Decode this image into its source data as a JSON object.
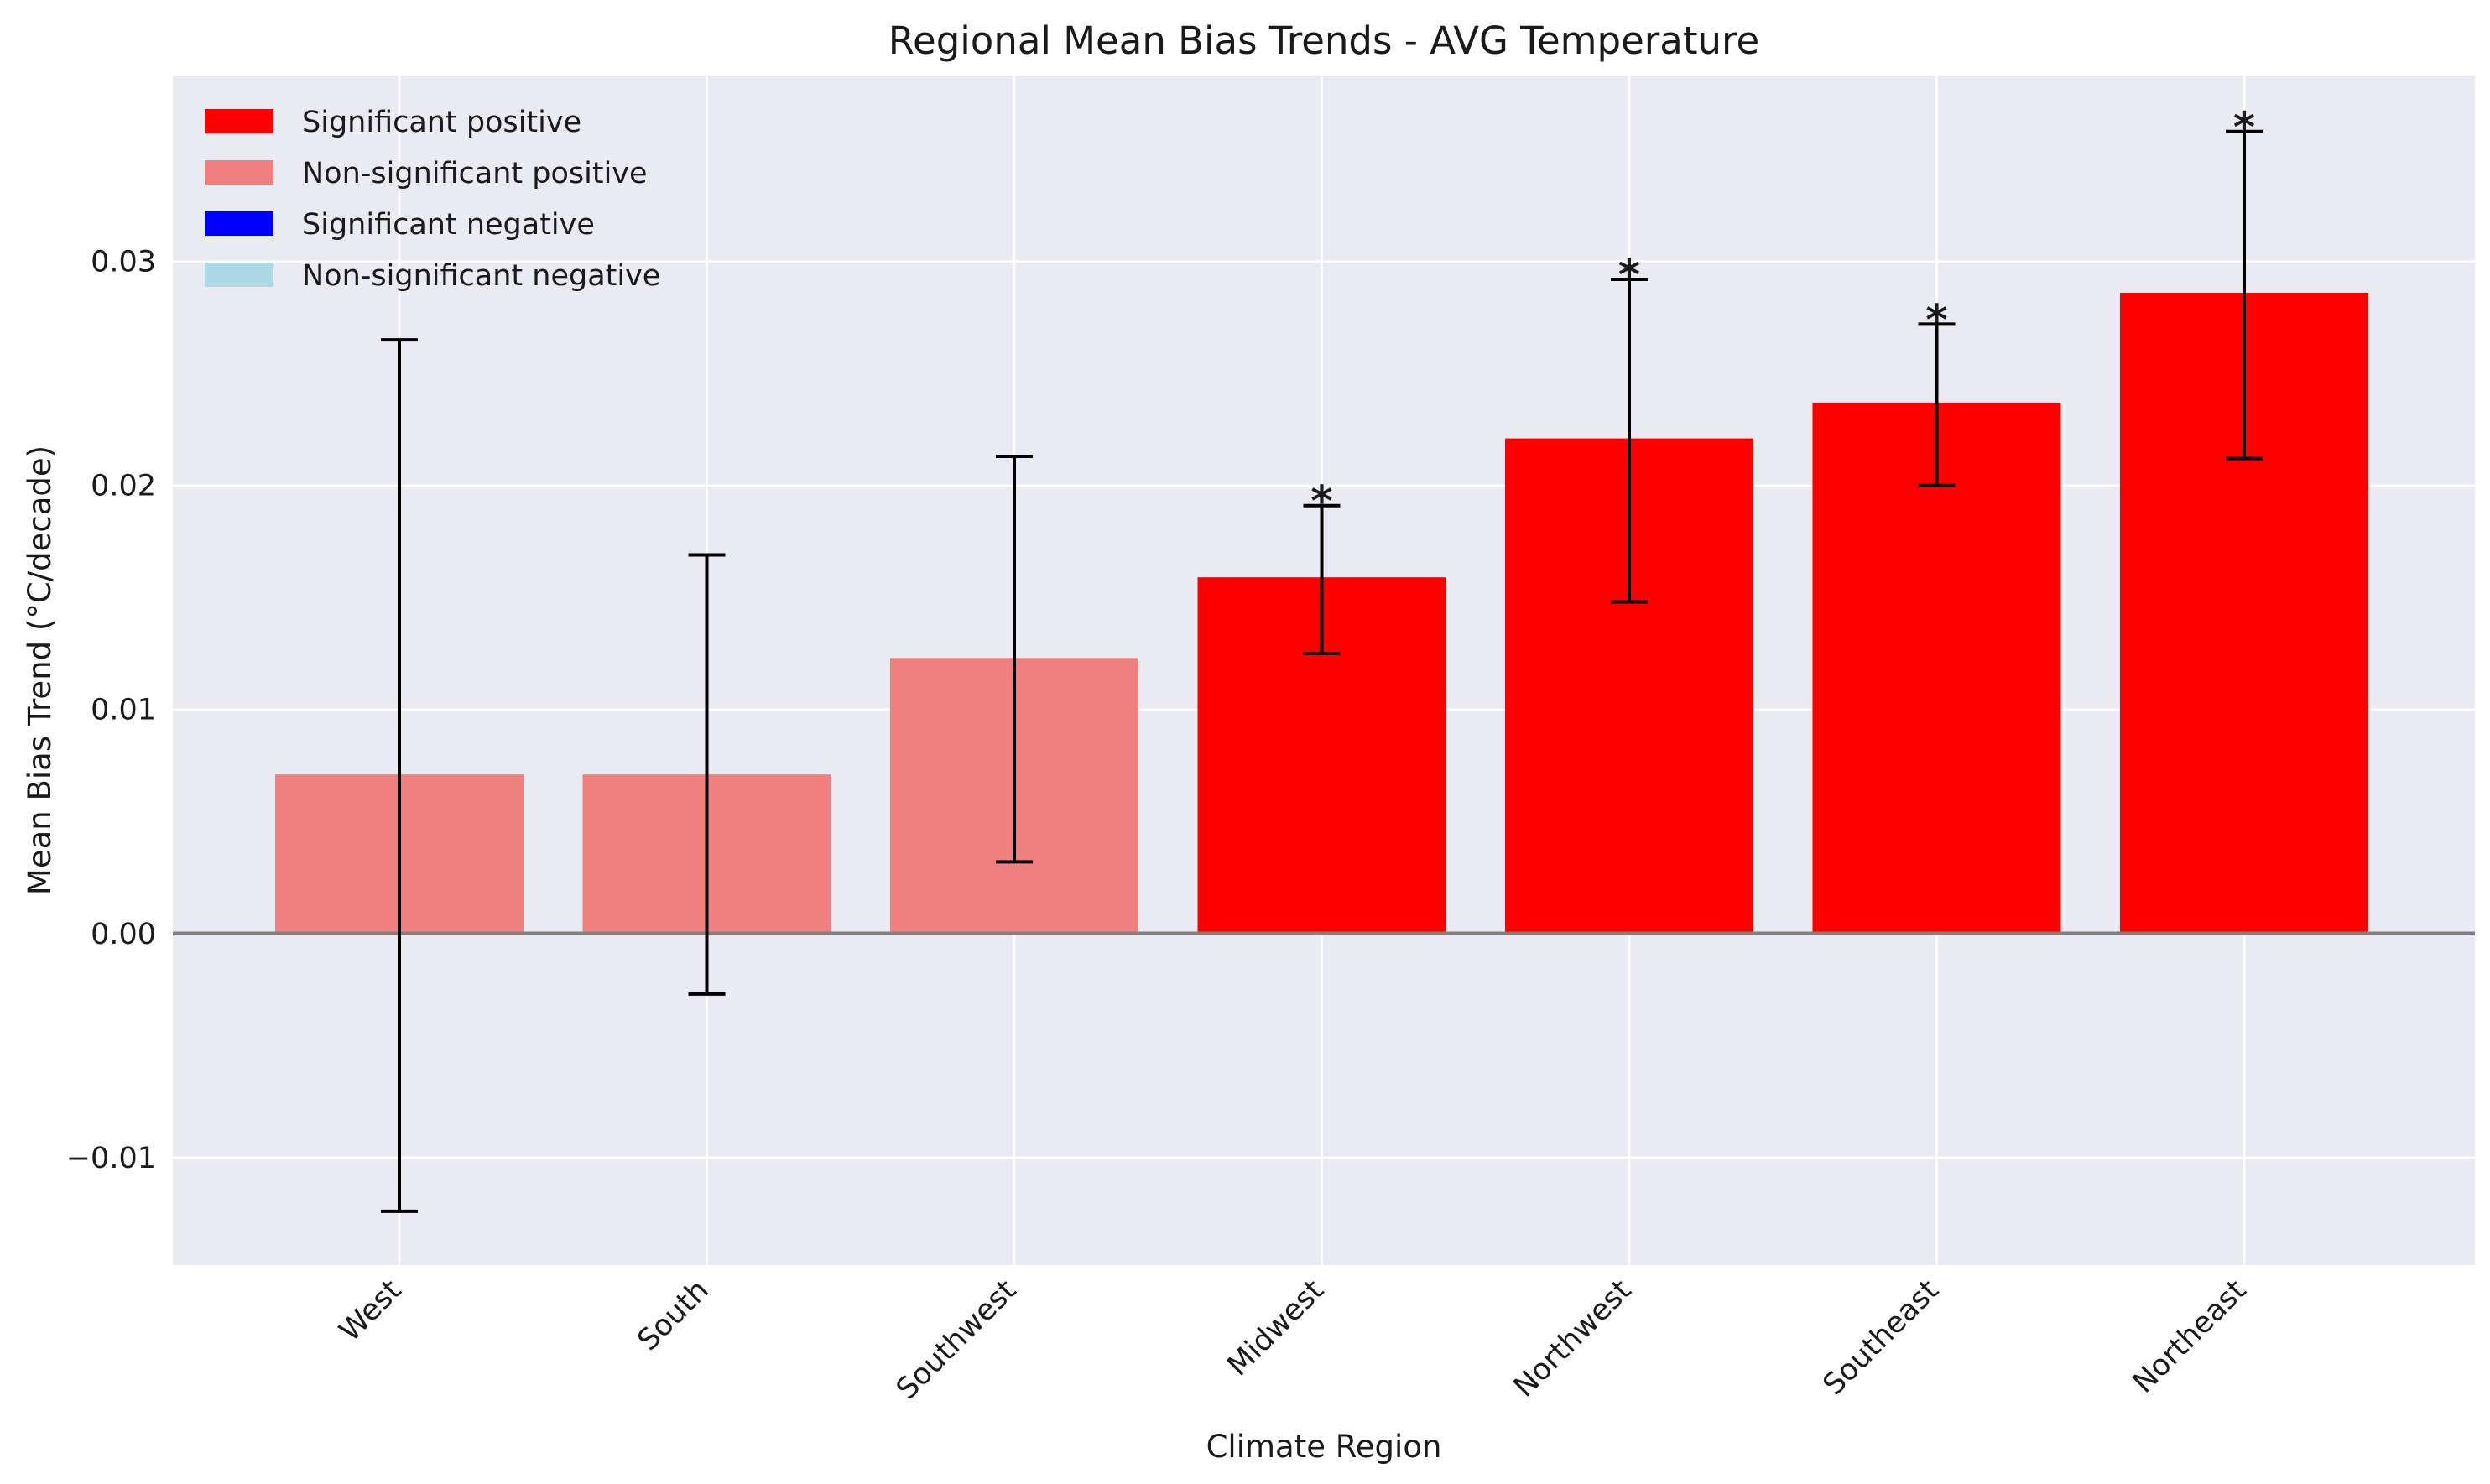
{
  "chart_data": {
    "type": "bar",
    "title": "Regional Mean Bias Trends - AVG Temperature",
    "xlabel": "Climate Region",
    "ylabel": "Mean Bias Trend (°C/decade)",
    "ylim": [
      -0.0148,
      0.0383
    ],
    "grid": true,
    "legend_position": "top-left",
    "yticks": [
      -0.01,
      0.0,
      0.01,
      0.02,
      0.03
    ],
    "ytick_labels": [
      "−0.01",
      "0.00",
      "0.01",
      "0.02",
      "0.03"
    ],
    "categories": [
      "West",
      "South",
      "Southwest",
      "Midwest",
      "Northwest",
      "Southeast",
      "Northeast"
    ],
    "values": [
      0.0071,
      0.0071,
      0.0123,
      0.0159,
      0.0221,
      0.0237,
      0.0286
    ],
    "error_low": [
      -0.0124,
      -0.0027,
      0.0032,
      0.0125,
      0.0148,
      0.02,
      0.0212
    ],
    "error_high": [
      0.0265,
      0.0169,
      0.0213,
      0.0191,
      0.0292,
      0.0272,
      0.0358
    ],
    "significant": [
      false,
      false,
      false,
      true,
      true,
      true,
      true
    ],
    "significance_marker": "*",
    "legend": [
      {
        "label": "Significant positive",
        "color": "#ff0000"
      },
      {
        "label": "Non-significant positive",
        "color": "#f08080"
      },
      {
        "label": "Significant negative",
        "color": "#0000ff"
      },
      {
        "label": "Non-significant negative",
        "color": "#add8e6"
      }
    ],
    "colors": {
      "significant_positive": "#ff0000",
      "nonsignificant_positive": "#f08080",
      "plot_background": "#eaeaf2",
      "grid": "#ffffff",
      "zero_line": "#808080",
      "error_bar": "#000000"
    }
  }
}
